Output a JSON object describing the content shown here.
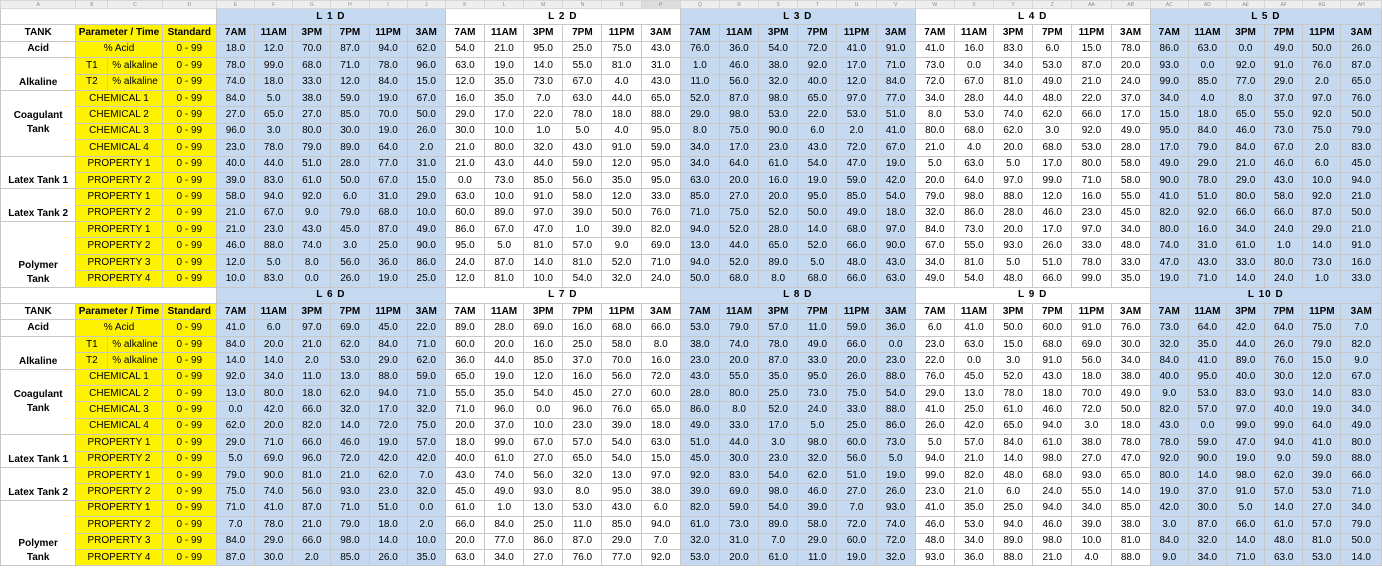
{
  "column_letters": [
    "A",
    "B",
    "C",
    "D",
    "E",
    "F",
    "G",
    "H",
    "I",
    "J",
    "K",
    "L",
    "M",
    "N",
    "O",
    "P",
    "Q",
    "R",
    "S",
    "T",
    "U",
    "V",
    "W",
    "X",
    "Y",
    "Z",
    "AA",
    "AB",
    "AC",
    "AD",
    "AE",
    "AF",
    "AG",
    "AH"
  ],
  "labels": {
    "tank_header": "TANK",
    "param_header": "Parameter / Time",
    "standard_header": "Standard",
    "acid": "Acid",
    "alkaline": "Alkaline",
    "coagulant": "Coagulant\nTank",
    "latex1": "Latex Tank 1",
    "latex2": "Latex Tank 2",
    "polymer": "Polymer\nTank",
    "t1": "T1",
    "t2": "T2",
    "pct_acid": "% Acid",
    "pct_alkaline": "% alkaline",
    "chemical_1": "CHEMICAL 1",
    "chemical_2": "CHEMICAL 2",
    "chemical_3": "CHEMICAL 3",
    "chemical_4": "CHEMICAL 4",
    "property_1": "PROPERTY 1",
    "property_2": "PROPERTY 2",
    "property_3": "PROPERTY 3",
    "property_4": "PROPERTY 4",
    "standard_range": "0 - 99"
  },
  "times": [
    "7AM",
    "11AM",
    "3PM",
    "7PM",
    "11PM",
    "3AM"
  ],
  "sections": [
    {
      "days": [
        "L 1 D",
        "L 2 D",
        "L 3 D",
        "L 4 D",
        "L 5 D"
      ],
      "rows": [
        [
          "18.0",
          "12.0",
          "70.0",
          "87.0",
          "94.0",
          "62.0",
          "54.0",
          "21.0",
          "95.0",
          "25.0",
          "75.0",
          "43.0",
          "76.0",
          "36.0",
          "54.0",
          "72.0",
          "41.0",
          "91.0",
          "41.0",
          "16.0",
          "83.0",
          "6.0",
          "15.0",
          "78.0",
          "86.0",
          "63.0",
          "0.0",
          "49.0",
          "50.0",
          "26.0"
        ],
        [
          "78.0",
          "99.0",
          "68.0",
          "71.0",
          "78.0",
          "96.0",
          "63.0",
          "19.0",
          "14.0",
          "55.0",
          "81.0",
          "31.0",
          "1.0",
          "46.0",
          "38.0",
          "92.0",
          "17.0",
          "71.0",
          "73.0",
          "0.0",
          "34.0",
          "53.0",
          "87.0",
          "20.0",
          "93.0",
          "0.0",
          "92.0",
          "91.0",
          "76.0",
          "87.0"
        ],
        [
          "74.0",
          "18.0",
          "33.0",
          "12.0",
          "84.0",
          "15.0",
          "12.0",
          "35.0",
          "73.0",
          "67.0",
          "4.0",
          "43.0",
          "11.0",
          "56.0",
          "32.0",
          "40.0",
          "12.0",
          "84.0",
          "72.0",
          "67.0",
          "81.0",
          "49.0",
          "21.0",
          "24.0",
          "99.0",
          "85.0",
          "77.0",
          "29.0",
          "2.0",
          "65.0"
        ],
        [
          "84.0",
          "5.0",
          "38.0",
          "59.0",
          "19.0",
          "67.0",
          "16.0",
          "35.0",
          "7.0",
          "63.0",
          "44.0",
          "65.0",
          "52.0",
          "87.0",
          "98.0",
          "65.0",
          "97.0",
          "77.0",
          "34.0",
          "28.0",
          "44.0",
          "48.0",
          "22.0",
          "37.0",
          "34.0",
          "4.0",
          "8.0",
          "37.0",
          "97.0",
          "76.0"
        ],
        [
          "27.0",
          "65.0",
          "27.0",
          "85.0",
          "70.0",
          "50.0",
          "29.0",
          "17.0",
          "22.0",
          "78.0",
          "18.0",
          "88.0",
          "29.0",
          "98.0",
          "53.0",
          "22.0",
          "53.0",
          "51.0",
          "8.0",
          "53.0",
          "74.0",
          "62.0",
          "66.0",
          "17.0",
          "15.0",
          "18.0",
          "65.0",
          "55.0",
          "92.0",
          "50.0"
        ],
        [
          "96.0",
          "3.0",
          "80.0",
          "30.0",
          "19.0",
          "26.0",
          "30.0",
          "10.0",
          "1.0",
          "5.0",
          "4.0",
          "95.0",
          "8.0",
          "75.0",
          "90.0",
          "6.0",
          "2.0",
          "41.0",
          "80.0",
          "68.0",
          "62.0",
          "3.0",
          "92.0",
          "49.0",
          "95.0",
          "84.0",
          "46.0",
          "73.0",
          "75.0",
          "79.0"
        ],
        [
          "23.0",
          "78.0",
          "79.0",
          "89.0",
          "64.0",
          "2.0",
          "21.0",
          "80.0",
          "32.0",
          "43.0",
          "91.0",
          "59.0",
          "34.0",
          "17.0",
          "23.0",
          "43.0",
          "72.0",
          "67.0",
          "21.0",
          "4.0",
          "20.0",
          "68.0",
          "53.0",
          "28.0",
          "17.0",
          "79.0",
          "84.0",
          "67.0",
          "2.0",
          "83.0"
        ],
        [
          "40.0",
          "44.0",
          "51.0",
          "28.0",
          "77.0",
          "31.0",
          "21.0",
          "43.0",
          "44.0",
          "59.0",
          "12.0",
          "95.0",
          "34.0",
          "64.0",
          "61.0",
          "54.0",
          "47.0",
          "19.0",
          "5.0",
          "63.0",
          "5.0",
          "17.0",
          "80.0",
          "58.0",
          "49.0",
          "29.0",
          "21.0",
          "46.0",
          "6.0",
          "45.0"
        ],
        [
          "39.0",
          "83.0",
          "61.0",
          "50.0",
          "67.0",
          "15.0",
          "0.0",
          "73.0",
          "85.0",
          "56.0",
          "35.0",
          "95.0",
          "63.0",
          "20.0",
          "16.0",
          "19.0",
          "59.0",
          "42.0",
          "20.0",
          "64.0",
          "97.0",
          "99.0",
          "71.0",
          "58.0",
          "90.0",
          "78.0",
          "29.0",
          "43.0",
          "10.0",
          "94.0"
        ],
        [
          "58.0",
          "94.0",
          "92.0",
          "6.0",
          "31.0",
          "29.0",
          "63.0",
          "10.0",
          "91.0",
          "58.0",
          "12.0",
          "33.0",
          "85.0",
          "27.0",
          "20.0",
          "95.0",
          "85.0",
          "54.0",
          "79.0",
          "98.0",
          "88.0",
          "12.0",
          "16.0",
          "55.0",
          "41.0",
          "51.0",
          "80.0",
          "58.0",
          "92.0",
          "21.0"
        ],
        [
          "21.0",
          "67.0",
          "9.0",
          "79.0",
          "68.0",
          "10.0",
          "60.0",
          "89.0",
          "97.0",
          "39.0",
          "50.0",
          "76.0",
          "71.0",
          "75.0",
          "52.0",
          "50.0",
          "49.0",
          "18.0",
          "32.0",
          "86.0",
          "28.0",
          "46.0",
          "23.0",
          "45.0",
          "82.0",
          "92.0",
          "66.0",
          "66.0",
          "87.0",
          "50.0"
        ],
        [
          "21.0",
          "23.0",
          "43.0",
          "45.0",
          "87.0",
          "49.0",
          "86.0",
          "67.0",
          "47.0",
          "1.0",
          "39.0",
          "82.0",
          "94.0",
          "52.0",
          "28.0",
          "14.0",
          "68.0",
          "97.0",
          "84.0",
          "73.0",
          "20.0",
          "17.0",
          "97.0",
          "34.0",
          "80.0",
          "16.0",
          "34.0",
          "24.0",
          "29.0",
          "21.0"
        ],
        [
          "46.0",
          "88.0",
          "74.0",
          "3.0",
          "25.0",
          "90.0",
          "95.0",
          "5.0",
          "81.0",
          "57.0",
          "9.0",
          "69.0",
          "13.0",
          "44.0",
          "65.0",
          "52.0",
          "66.0",
          "90.0",
          "67.0",
          "55.0",
          "93.0",
          "26.0",
          "33.0",
          "48.0",
          "74.0",
          "31.0",
          "61.0",
          "1.0",
          "14.0",
          "91.0"
        ],
        [
          "12.0",
          "5.0",
          "8.0",
          "56.0",
          "36.0",
          "86.0",
          "24.0",
          "87.0",
          "14.0",
          "81.0",
          "52.0",
          "71.0",
          "94.0",
          "52.0",
          "89.0",
          "5.0",
          "48.0",
          "43.0",
          "34.0",
          "81.0",
          "5.0",
          "51.0",
          "78.0",
          "33.0",
          "47.0",
          "43.0",
          "33.0",
          "80.0",
          "73.0",
          "16.0"
        ],
        [
          "10.0",
          "83.0",
          "0.0",
          "26.0",
          "19.0",
          "25.0",
          "12.0",
          "81.0",
          "10.0",
          "54.0",
          "32.0",
          "24.0",
          "50.0",
          "68.0",
          "8.0",
          "68.0",
          "66.0",
          "63.0",
          "49.0",
          "54.0",
          "48.0",
          "66.0",
          "99.0",
          "35.0",
          "19.0",
          "71.0",
          "14.0",
          "24.0",
          "1.0",
          "33.0"
        ]
      ]
    },
    {
      "days": [
        "L 6 D",
        "L 7 D",
        "L 8 D",
        "L 9 D",
        "L 10 D"
      ],
      "rows": [
        [
          "41.0",
          "6.0",
          "97.0",
          "69.0",
          "45.0",
          "22.0",
          "89.0",
          "28.0",
          "69.0",
          "16.0",
          "68.0",
          "66.0",
          "53.0",
          "79.0",
          "57.0",
          "11.0",
          "59.0",
          "36.0",
          "6.0",
          "41.0",
          "50.0",
          "60.0",
          "91.0",
          "76.0",
          "73.0",
          "64.0",
          "42.0",
          "64.0",
          "75.0",
          "7.0"
        ],
        [
          "84.0",
          "20.0",
          "21.0",
          "62.0",
          "84.0",
          "71.0",
          "60.0",
          "20.0",
          "16.0",
          "25.0",
          "58.0",
          "8.0",
          "38.0",
          "74.0",
          "78.0",
          "49.0",
          "66.0",
          "0.0",
          "23.0",
          "63.0",
          "15.0",
          "68.0",
          "69.0",
          "30.0",
          "32.0",
          "35.0",
          "44.0",
          "26.0",
          "79.0",
          "82.0"
        ],
        [
          "14.0",
          "14.0",
          "2.0",
          "53.0",
          "29.0",
          "62.0",
          "36.0",
          "44.0",
          "85.0",
          "37.0",
          "70.0",
          "16.0",
          "23.0",
          "20.0",
          "87.0",
          "33.0",
          "20.0",
          "23.0",
          "22.0",
          "0.0",
          "3.0",
          "91.0",
          "56.0",
          "34.0",
          "84.0",
          "41.0",
          "89.0",
          "76.0",
          "15.0",
          "9.0"
        ],
        [
          "92.0",
          "34.0",
          "11.0",
          "13.0",
          "88.0",
          "59.0",
          "65.0",
          "19.0",
          "12.0",
          "16.0",
          "56.0",
          "72.0",
          "43.0",
          "55.0",
          "35.0",
          "95.0",
          "26.0",
          "88.0",
          "76.0",
          "45.0",
          "52.0",
          "43.0",
          "18.0",
          "38.0",
          "40.0",
          "95.0",
          "40.0",
          "30.0",
          "12.0",
          "67.0"
        ],
        [
          "13.0",
          "80.0",
          "18.0",
          "62.0",
          "94.0",
          "71.0",
          "55.0",
          "35.0",
          "54.0",
          "45.0",
          "27.0",
          "60.0",
          "28.0",
          "80.0",
          "25.0",
          "73.0",
          "75.0",
          "54.0",
          "29.0",
          "13.0",
          "78.0",
          "18.0",
          "70.0",
          "49.0",
          "9.0",
          "53.0",
          "83.0",
          "93.0",
          "14.0",
          "83.0"
        ],
        [
          "0.0",
          "42.0",
          "66.0",
          "32.0",
          "17.0",
          "32.0",
          "71.0",
          "96.0",
          "0.0",
          "96.0",
          "76.0",
          "65.0",
          "86.0",
          "8.0",
          "52.0",
          "24.0",
          "33.0",
          "88.0",
          "41.0",
          "25.0",
          "61.0",
          "46.0",
          "72.0",
          "50.0",
          "82.0",
          "57.0",
          "97.0",
          "40.0",
          "19.0",
          "34.0"
        ],
        [
          "62.0",
          "20.0",
          "82.0",
          "14.0",
          "72.0",
          "75.0",
          "20.0",
          "37.0",
          "10.0",
          "23.0",
          "39.0",
          "18.0",
          "49.0",
          "33.0",
          "17.0",
          "5.0",
          "25.0",
          "86.0",
          "26.0",
          "42.0",
          "65.0",
          "94.0",
          "3.0",
          "18.0",
          "43.0",
          "0.0",
          "99.0",
          "99.0",
          "64.0",
          "49.0"
        ],
        [
          "29.0",
          "71.0",
          "66.0",
          "46.0",
          "19.0",
          "57.0",
          "18.0",
          "99.0",
          "67.0",
          "57.0",
          "54.0",
          "63.0",
          "51.0",
          "44.0",
          "3.0",
          "98.0",
          "60.0",
          "73.0",
          "5.0",
          "57.0",
          "84.0",
          "61.0",
          "38.0",
          "78.0",
          "78.0",
          "59.0",
          "47.0",
          "94.0",
          "41.0",
          "80.0"
        ],
        [
          "5.0",
          "69.0",
          "96.0",
          "72.0",
          "42.0",
          "42.0",
          "40.0",
          "61.0",
          "27.0",
          "65.0",
          "54.0",
          "15.0",
          "45.0",
          "30.0",
          "23.0",
          "32.0",
          "56.0",
          "5.0",
          "94.0",
          "21.0",
          "14.0",
          "98.0",
          "27.0",
          "47.0",
          "92.0",
          "90.0",
          "19.0",
          "9.0",
          "59.0",
          "88.0"
        ],
        [
          "79.0",
          "90.0",
          "81.0",
          "21.0",
          "62.0",
          "7.0",
          "43.0",
          "74.0",
          "56.0",
          "32.0",
          "13.0",
          "97.0",
          "92.0",
          "83.0",
          "54.0",
          "62.0",
          "51.0",
          "19.0",
          "99.0",
          "82.0",
          "48.0",
          "68.0",
          "93.0",
          "65.0",
          "80.0",
          "14.0",
          "98.0",
          "62.0",
          "39.0",
          "66.0"
        ],
        [
          "75.0",
          "74.0",
          "56.0",
          "93.0",
          "23.0",
          "32.0",
          "45.0",
          "49.0",
          "93.0",
          "8.0",
          "95.0",
          "38.0",
          "39.0",
          "69.0",
          "98.0",
          "46.0",
          "27.0",
          "26.0",
          "23.0",
          "21.0",
          "6.0",
          "24.0",
          "55.0",
          "14.0",
          "19.0",
          "37.0",
          "91.0",
          "57.0",
          "53.0",
          "71.0"
        ],
        [
          "71.0",
          "41.0",
          "87.0",
          "71.0",
          "51.0",
          "0.0",
          "61.0",
          "1.0",
          "13.0",
          "53.0",
          "43.0",
          "6.0",
          "82.0",
          "59.0",
          "54.0",
          "39.0",
          "7.0",
          "93.0",
          "41.0",
          "35.0",
          "25.0",
          "94.0",
          "34.0",
          "85.0",
          "42.0",
          "30.0",
          "5.0",
          "14.0",
          "27.0",
          "34.0"
        ],
        [
          "7.0",
          "78.0",
          "21.0",
          "79.0",
          "18.0",
          "2.0",
          "66.0",
          "84.0",
          "25.0",
          "11.0",
          "85.0",
          "94.0",
          "61.0",
          "73.0",
          "89.0",
          "58.0",
          "72.0",
          "74.0",
          "46.0",
          "53.0",
          "94.0",
          "46.0",
          "39.0",
          "38.0",
          "3.0",
          "87.0",
          "66.0",
          "61.0",
          "57.0",
          "79.0"
        ],
        [
          "84.0",
          "29.0",
          "66.0",
          "98.0",
          "14.0",
          "10.0",
          "20.0",
          "77.0",
          "86.0",
          "87.0",
          "29.0",
          "7.0",
          "32.0",
          "31.0",
          "7.0",
          "29.0",
          "60.0",
          "72.0",
          "48.0",
          "34.0",
          "89.0",
          "98.0",
          "10.0",
          "81.0",
          "84.0",
          "32.0",
          "14.0",
          "48.0",
          "81.0",
          "50.0"
        ],
        [
          "87.0",
          "30.0",
          "2.0",
          "85.0",
          "26.0",
          "35.0",
          "63.0",
          "34.0",
          "27.0",
          "76.0",
          "77.0",
          "92.0",
          "53.0",
          "20.0",
          "61.0",
          "11.0",
          "19.0",
          "32.0",
          "93.0",
          "36.0",
          "88.0",
          "21.0",
          "4.0",
          "88.0",
          "9.0",
          "34.0",
          "71.0",
          "63.0",
          "53.0",
          "14.0"
        ]
      ]
    }
  ]
}
